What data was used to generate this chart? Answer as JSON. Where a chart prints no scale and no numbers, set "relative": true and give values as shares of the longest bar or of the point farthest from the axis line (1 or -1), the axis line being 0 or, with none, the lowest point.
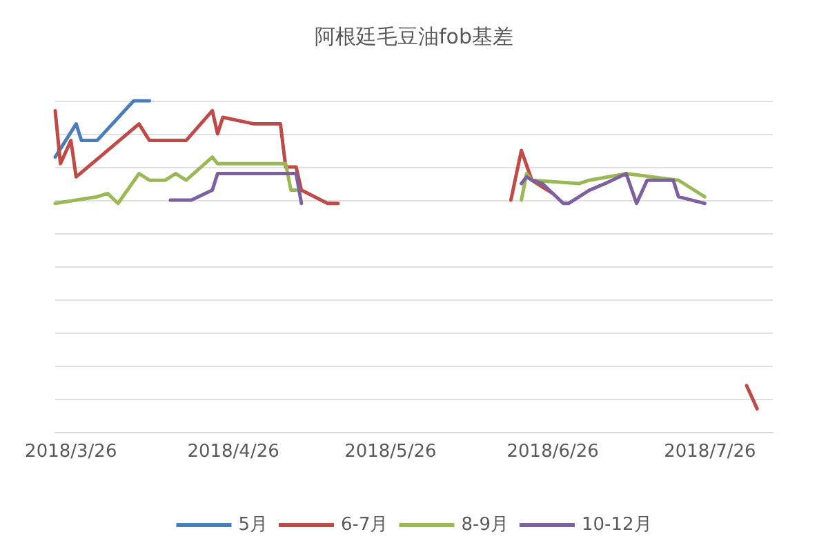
{
  "chart_data": {
    "type": "line",
    "title": "阿根廷毛豆油fob基差",
    "relative": true,
    "grid": "y",
    "legend": "bottom",
    "marker": "none",
    "line_style": "solid",
    "xlim": [
      "2018-03-23",
      "2018-08-07"
    ],
    "xticks": [
      {
        "value": "2018-03-26",
        "label": "2018/3/26"
      },
      {
        "value": "2018-04-26",
        "label": "2018/4/26"
      },
      {
        "value": "2018-05-26",
        "label": "2018/5/26"
      },
      {
        "value": "2018-06-26",
        "label": "2018/6/26"
      },
      {
        "value": "2018-07-26",
        "label": "2018/7/26"
      }
    ],
    "series": [
      {
        "name": "5月",
        "color": "#4a7ebb",
        "x": [
          "2018-03-23",
          "2018-03-27",
          "2018-03-28",
          "2018-03-31",
          "2018-04-07",
          "2018-04-10"
        ],
        "values": [
          0.83,
          0.93,
          0.88,
          0.88,
          1.0,
          1.0
        ]
      },
      {
        "name": "6-7月",
        "color": "#be4b48",
        "x": [
          "2018-03-23",
          "2018-03-24",
          "2018-03-26",
          "2018-03-27",
          "2018-04-08",
          "2018-04-10",
          "2018-04-17",
          "2018-04-22",
          "2018-04-23",
          "2018-04-24",
          "2018-04-30",
          "2018-05-05",
          "2018-05-06",
          "2018-05-08",
          "2018-05-09",
          "2018-05-14",
          "2018-05-16",
          "2018-05-17",
          "2018-06-18",
          "2018-06-20",
          "2018-06-22",
          "2018-06-24",
          "2018-06-26",
          "2018-06-27",
          "2018-08-02",
          "2018-08-04"
        ],
        "values": [
          0.97,
          0.81,
          0.88,
          0.77,
          0.93,
          0.88,
          0.88,
          0.97,
          0.9,
          0.95,
          0.93,
          0.93,
          0.8,
          0.8,
          0.73,
          0.69,
          0.69,
          null,
          0.7,
          0.85,
          0.76,
          0.74,
          0.72,
          null,
          0.14,
          0.07
        ]
      },
      {
        "name": "8-9月",
        "color": "#98b954",
        "x": [
          "2018-03-23",
          "2018-03-31",
          "2018-04-02",
          "2018-04-04",
          "2018-04-08",
          "2018-04-10",
          "2018-04-13",
          "2018-04-15",
          "2018-04-17",
          "2018-04-22",
          "2018-04-23",
          "2018-05-06",
          "2018-05-07",
          "2018-05-08",
          "2018-05-09",
          "2018-06-20",
          "2018-06-21",
          "2018-06-22",
          "2018-07-01",
          "2018-07-03",
          "2018-07-10",
          "2018-07-20",
          "2018-07-21",
          "2018-07-25"
        ],
        "values": [
          0.69,
          0.71,
          0.72,
          0.69,
          0.78,
          0.76,
          0.76,
          0.78,
          0.76,
          0.83,
          0.81,
          0.81,
          0.73,
          0.73,
          null,
          0.7,
          0.78,
          0.76,
          0.75,
          0.76,
          0.78,
          0.76,
          0.75,
          0.71
        ]
      },
      {
        "name": "10-12月",
        "color": "#7d60a0",
        "x": [
          "2018-04-14",
          "2018-04-18",
          "2018-04-22",
          "2018-04-23",
          "2018-05-08",
          "2018-05-09",
          "2018-05-10",
          "2018-06-20",
          "2018-06-21",
          "2018-06-22",
          "2018-06-24",
          "2018-06-28",
          "2018-06-29",
          "2018-07-03",
          "2018-07-06",
          "2018-07-10",
          "2018-07-12",
          "2018-07-14",
          "2018-07-19",
          "2018-07-20",
          "2018-07-25"
        ],
        "values": [
          0.7,
          0.7,
          0.73,
          0.78,
          0.78,
          0.69,
          null,
          0.75,
          0.77,
          0.76,
          0.75,
          0.69,
          0.69,
          0.73,
          0.75,
          0.78,
          0.69,
          0.76,
          0.76,
          0.71,
          0.69
        ]
      }
    ]
  }
}
